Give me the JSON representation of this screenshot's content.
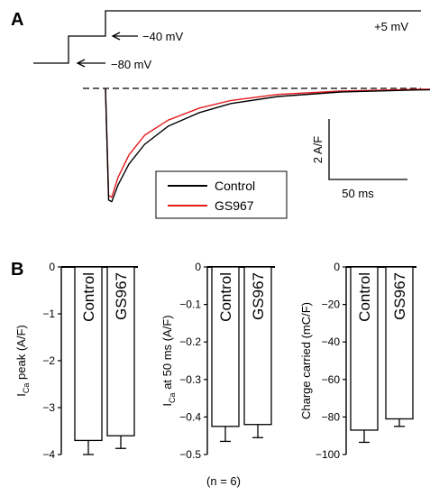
{
  "panel_a": {
    "label": "A",
    "protocol": {
      "labels": [
        "+5 mV",
        "−40 mV",
        "−80 mV"
      ]
    },
    "scalebar": {
      "y_label": "2 A/F",
      "x_label": "50 ms"
    },
    "legend": [
      "Control",
      "GS967"
    ]
  },
  "panel_b": {
    "label": "B",
    "footnote": "(n = 6)"
  },
  "colors": {
    "control": "#000000",
    "gs967": "#e41a1c"
  },
  "chart_data": [
    {
      "type": "line",
      "title": "",
      "xlabel": "",
      "ylabel": "",
      "x_unit": "ms",
      "y_unit": "A/F",
      "scale_bars": {
        "x": 50,
        "y": 2
      },
      "legend": [
        "Control",
        "GS967"
      ],
      "series": [
        {
          "name": "Control",
          "color": "#000000",
          "x": [
            0,
            2,
            4,
            8,
            15,
            25,
            40,
            60,
            80,
            110,
            150,
            200,
            245
          ],
          "y": [
            0,
            -3.7,
            -3.75,
            -3.2,
            -2.5,
            -1.85,
            -1.25,
            -0.8,
            -0.5,
            -0.27,
            -0.12,
            -0.05,
            -0.02
          ]
        },
        {
          "name": "GS967",
          "color": "#e41a1c",
          "x": [
            0,
            2,
            4,
            8,
            15,
            25,
            40,
            60,
            80,
            110,
            150,
            200,
            245
          ],
          "y": [
            0,
            -3.55,
            -3.6,
            -2.95,
            -2.2,
            -1.55,
            -1.05,
            -0.65,
            -0.4,
            -0.2,
            -0.09,
            -0.03,
            -0.01
          ]
        }
      ]
    },
    {
      "type": "bar",
      "ylabel": "I",
      "ylabel_sub": "Ca",
      "ylabel_rest": " peak (A/F)",
      "categories": [
        "Control",
        "GS967"
      ],
      "values": [
        -3.7,
        -3.6
      ],
      "errors": [
        0.3,
        0.27
      ],
      "ylim": [
        -4,
        0
      ],
      "yticks": [
        "0",
        "−1",
        "−2",
        "−3",
        "−4"
      ]
    },
    {
      "type": "bar",
      "ylabel": "I",
      "ylabel_sub": "Ca",
      "ylabel_rest": " at 50 ms (A/F)",
      "categories": [
        "Control",
        "GS967"
      ],
      "values": [
        -0.425,
        -0.42
      ],
      "errors": [
        0.04,
        0.035
      ],
      "ylim": [
        -0.5,
        0
      ],
      "yticks": [
        "0",
        "−0.1",
        "−0.2",
        "−0.3",
        "−0.4",
        "−0.5"
      ]
    },
    {
      "type": "bar",
      "ylabel": "Charge carried (mC/F)",
      "ylabel_sub": "",
      "ylabel_rest": "",
      "categories": [
        "Control",
        "GS967"
      ],
      "values": [
        -87,
        -81
      ],
      "errors": [
        6.5,
        4
      ],
      "ylim": [
        -100,
        0
      ],
      "yticks": [
        "0",
        "−20",
        "−40",
        "−60",
        "−80",
        "−100"
      ]
    }
  ]
}
